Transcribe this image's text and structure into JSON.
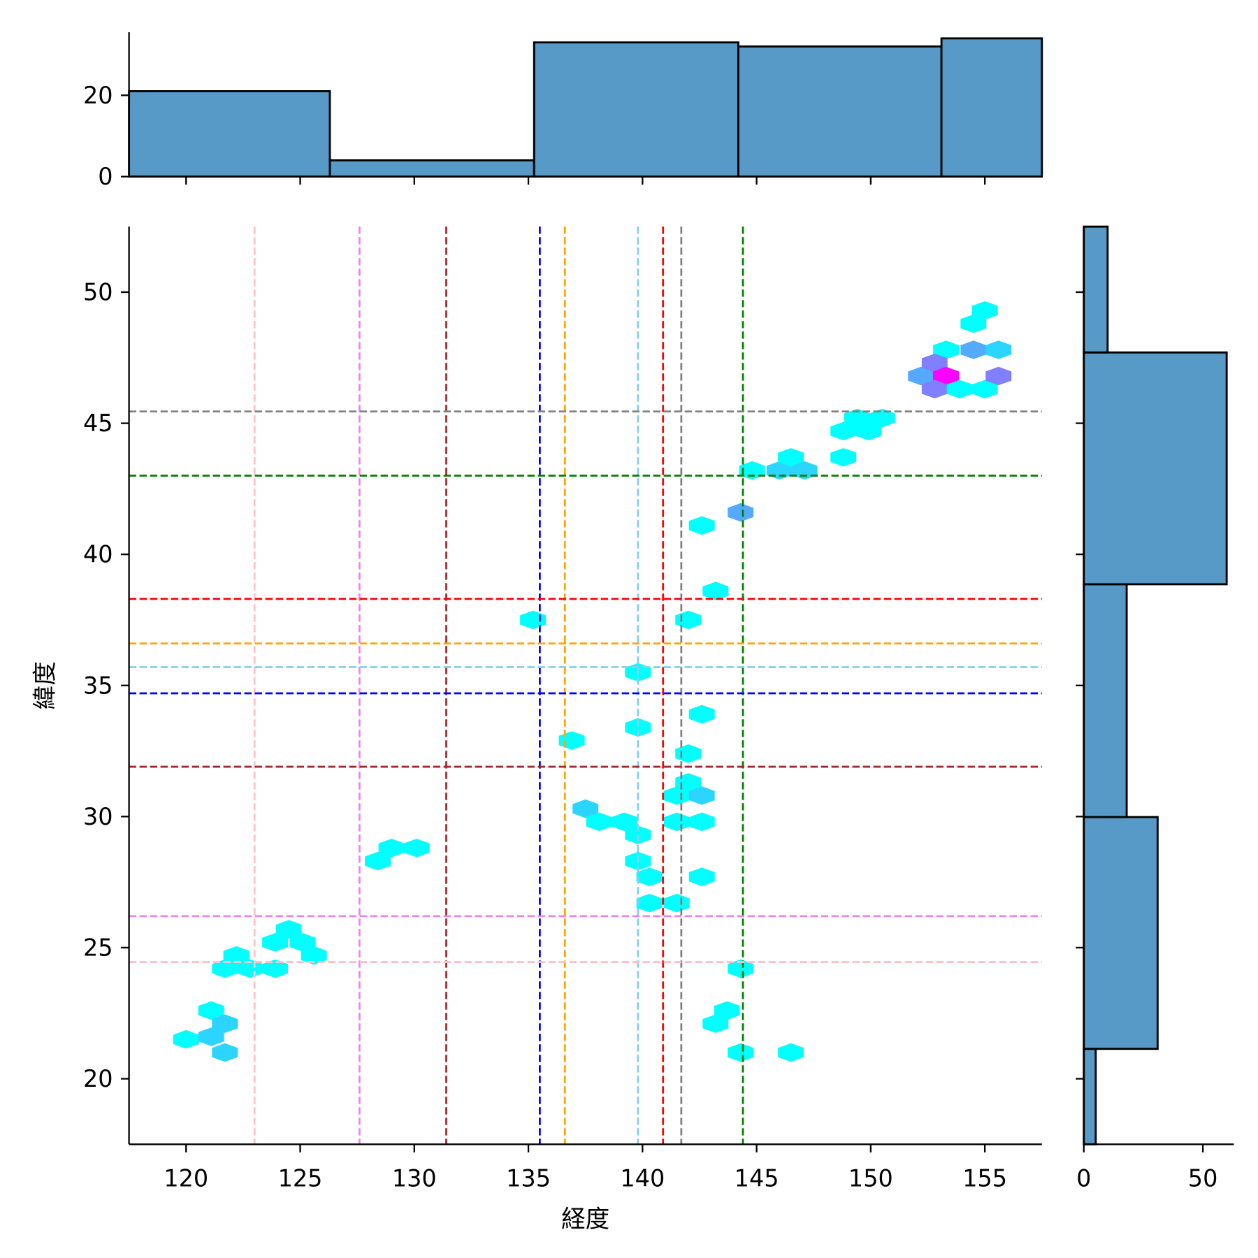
{
  "chart_data": {
    "type": "hexbin-jointplot",
    "xlabel": "経度",
    "ylabel": "緯度",
    "xlim": [
      117.5,
      157.5
    ],
    "ylim": [
      17.5,
      52.5
    ],
    "xticks": [
      120,
      125,
      130,
      135,
      140,
      145,
      150,
      155
    ],
    "yticks": [
      20,
      25,
      30,
      35,
      40,
      45,
      50
    ],
    "colormap": "cool",
    "count_range": [
      1,
      7
    ],
    "hexbins": [
      {
        "x": 120.0,
        "y": 21.5,
        "count": 1
      },
      {
        "x": 121.1,
        "y": 22.6,
        "count": 1
      },
      {
        "x": 121.1,
        "y": 21.6,
        "count": 2
      },
      {
        "x": 121.7,
        "y": 22.1,
        "count": 2
      },
      {
        "x": 121.7,
        "y": 21.0,
        "count": 2
      },
      {
        "x": 121.7,
        "y": 24.2,
        "count": 1
      },
      {
        "x": 122.2,
        "y": 24.7,
        "count": 1
      },
      {
        "x": 122.8,
        "y": 24.2,
        "count": 1
      },
      {
        "x": 123.9,
        "y": 24.2,
        "count": 1
      },
      {
        "x": 123.9,
        "y": 25.2,
        "count": 1
      },
      {
        "x": 124.5,
        "y": 25.7,
        "count": 1
      },
      {
        "x": 125.1,
        "y": 25.2,
        "count": 1
      },
      {
        "x": 125.6,
        "y": 24.7,
        "count": 1
      },
      {
        "x": 128.4,
        "y": 28.3,
        "count": 1
      },
      {
        "x": 129.0,
        "y": 28.8,
        "count": 1
      },
      {
        "x": 130.1,
        "y": 28.8,
        "count": 1
      },
      {
        "x": 135.2,
        "y": 37.5,
        "count": 1
      },
      {
        "x": 136.9,
        "y": 32.9,
        "count": 1
      },
      {
        "x": 137.5,
        "y": 30.3,
        "count": 2
      },
      {
        "x": 138.1,
        "y": 29.8,
        "count": 1
      },
      {
        "x": 139.2,
        "y": 29.8,
        "count": 1
      },
      {
        "x": 139.8,
        "y": 29.3,
        "count": 1
      },
      {
        "x": 139.8,
        "y": 35.5,
        "count": 1
      },
      {
        "x": 139.8,
        "y": 33.4,
        "count": 1
      },
      {
        "x": 139.8,
        "y": 28.3,
        "count": 1
      },
      {
        "x": 140.3,
        "y": 27.7,
        "count": 1
      },
      {
        "x": 140.3,
        "y": 26.7,
        "count": 1
      },
      {
        "x": 141.5,
        "y": 26.7,
        "count": 1
      },
      {
        "x": 141.5,
        "y": 30.8,
        "count": 1
      },
      {
        "x": 141.5,
        "y": 29.8,
        "count": 1
      },
      {
        "x": 142.0,
        "y": 31.3,
        "count": 1
      },
      {
        "x": 142.0,
        "y": 32.4,
        "count": 1
      },
      {
        "x": 142.0,
        "y": 37.5,
        "count": 1
      },
      {
        "x": 142.6,
        "y": 30.8,
        "count": 2
      },
      {
        "x": 142.6,
        "y": 29.8,
        "count": 1
      },
      {
        "x": 142.6,
        "y": 27.7,
        "count": 1
      },
      {
        "x": 142.6,
        "y": 33.9,
        "count": 1
      },
      {
        "x": 142.6,
        "y": 41.1,
        "count": 1
      },
      {
        "x": 143.2,
        "y": 38.6,
        "count": 1
      },
      {
        "x": 143.2,
        "y": 22.1,
        "count": 1
      },
      {
        "x": 143.7,
        "y": 22.6,
        "count": 1
      },
      {
        "x": 144.3,
        "y": 24.2,
        "count": 1
      },
      {
        "x": 144.3,
        "y": 21.0,
        "count": 1
      },
      {
        "x": 146.5,
        "y": 21.0,
        "count": 1
      },
      {
        "x": 144.3,
        "y": 41.6,
        "count": 3
      },
      {
        "x": 144.8,
        "y": 43.2,
        "count": 1
      },
      {
        "x": 146.0,
        "y": 43.2,
        "count": 2
      },
      {
        "x": 146.5,
        "y": 43.7,
        "count": 1
      },
      {
        "x": 147.1,
        "y": 43.2,
        "count": 2
      },
      {
        "x": 148.8,
        "y": 43.7,
        "count": 1
      },
      {
        "x": 148.8,
        "y": 44.7,
        "count": 1
      },
      {
        "x": 149.4,
        "y": 45.2,
        "count": 1
      },
      {
        "x": 149.9,
        "y": 44.7,
        "count": 1
      },
      {
        "x": 150.5,
        "y": 45.2,
        "count": 1
      },
      {
        "x": 153.3,
        "y": 47.8,
        "count": 1
      },
      {
        "x": 154.5,
        "y": 47.8,
        "count": 3
      },
      {
        "x": 155.6,
        "y": 47.8,
        "count": 2
      },
      {
        "x": 154.5,
        "y": 48.8,
        "count": 1
      },
      {
        "x": 155.0,
        "y": 49.3,
        "count": 1
      },
      {
        "x": 152.2,
        "y": 46.8,
        "count": 3
      },
      {
        "x": 152.8,
        "y": 47.3,
        "count": 4
      },
      {
        "x": 153.3,
        "y": 46.8,
        "count": 7
      },
      {
        "x": 152.8,
        "y": 46.3,
        "count": 4
      },
      {
        "x": 153.9,
        "y": 46.3,
        "count": 1
      },
      {
        "x": 155.0,
        "y": 46.3,
        "count": 1
      },
      {
        "x": 155.6,
        "y": 46.8,
        "count": 4
      }
    ],
    "vlines": [
      {
        "x": 123.0,
        "color": "#ffc0cb"
      },
      {
        "x": 127.6,
        "color": "#ee82ee"
      },
      {
        "x": 131.4,
        "color": "#a52a2a"
      },
      {
        "x": 135.5,
        "color": "#0000ff"
      },
      {
        "x": 136.6,
        "color": "#ffa500"
      },
      {
        "x": 139.8,
        "color": "#87ceeb"
      },
      {
        "x": 140.9,
        "color": "#ff0000"
      },
      {
        "x": 141.7,
        "color": "#808080"
      },
      {
        "x": 144.4,
        "color": "#008000"
      }
    ],
    "hlines": [
      {
        "y": 45.45,
        "color": "#808080"
      },
      {
        "y": 43.0,
        "color": "#008000"
      },
      {
        "y": 38.3,
        "color": "#ff0000"
      },
      {
        "y": 36.6,
        "color": "#ffa500"
      },
      {
        "y": 35.7,
        "color": "#87ceeb"
      },
      {
        "y": 34.7,
        "color": "#0000ff"
      },
      {
        "y": 31.9,
        "color": "#a52a2a"
      },
      {
        "y": 26.2,
        "color": "#ee82ee"
      },
      {
        "y": 24.45,
        "color": "#ffc0cb"
      }
    ],
    "top_hist": {
      "edges": [
        117.5,
        126.3,
        135.25,
        144.2,
        153.1,
        157.5
      ],
      "counts": [
        21,
        4,
        33,
        32,
        34
      ],
      "ylim": [
        0,
        35.5
      ],
      "yticks": [
        0,
        20
      ],
      "color": "#5799c7"
    },
    "right_hist": {
      "edges": [
        17.5,
        21.14,
        29.98,
        38.86,
        47.7,
        52.5
      ],
      "counts": [
        5,
        31,
        18,
        60,
        10
      ],
      "xlim": [
        0,
        63
      ],
      "xticks": [
        0,
        50
      ],
      "color": "#5799c7"
    }
  }
}
